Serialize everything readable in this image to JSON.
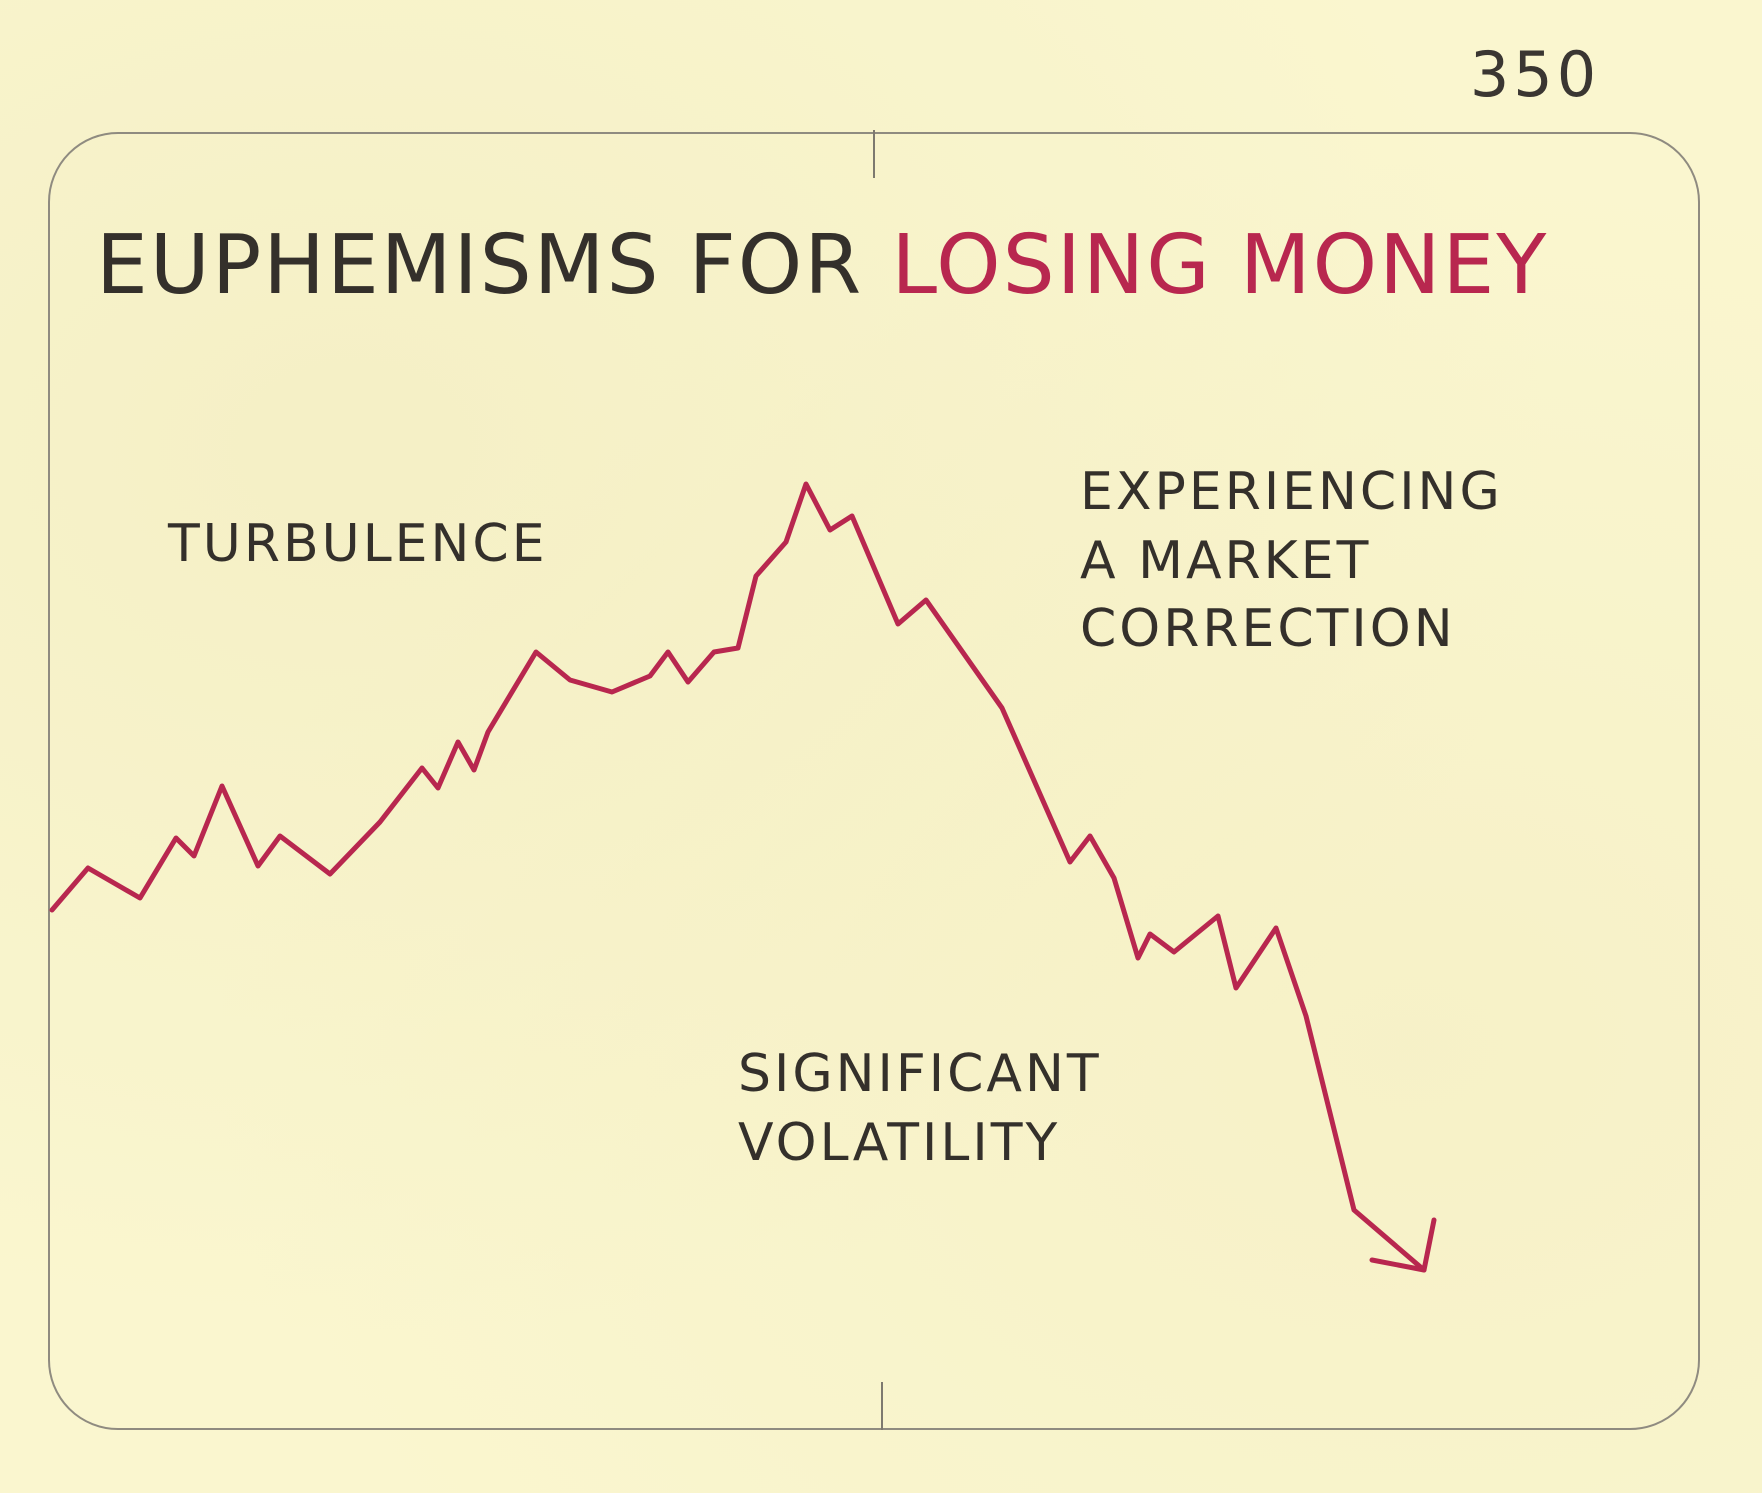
{
  "page_number": "350",
  "title": {
    "prefix": "EUPHEMISMS FOR",
    "highlight": "LOSING MONEY"
  },
  "annotations": {
    "turbulence": "TURBULENCE",
    "correction_line1": "EXPERIENCING",
    "correction_line2": "A MARKET",
    "correction_line3": "CORRECTION",
    "volatility_line1": "SIGNIFICANT",
    "volatility_line2": "VOLATILITY"
  },
  "colors": {
    "paper": "#faf6cf",
    "ink": "#34302b",
    "line": "#b8274f",
    "border": "#8f8b80"
  }
}
